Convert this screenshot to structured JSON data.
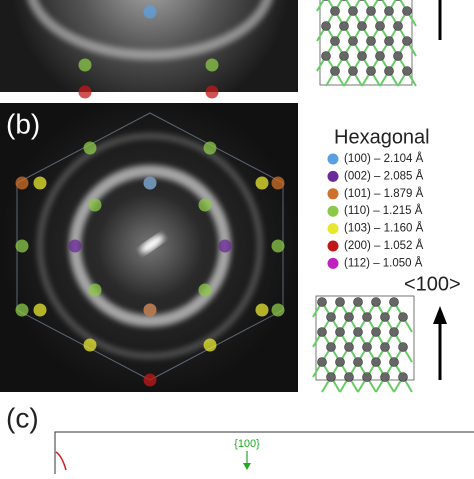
{
  "panels": {
    "b": {
      "label": "(b)",
      "legend_title": "Hexagonal",
      "legend": [
        {
          "text": "(100) – 2.104 Å",
          "color": "#5aa0e0"
        },
        {
          "text": "(002) – 2.085 Å",
          "color": "#6a2a9a"
        },
        {
          "text": "(101) – 1.879 Å",
          "color": "#d0702a"
        },
        {
          "text": "(110) – 1.215 Å",
          "color": "#8cc84a"
        },
        {
          "text": "(103) – 1.160 Å",
          "color": "#e8e830"
        },
        {
          "text": "(200) – 1.052 Å",
          "color": "#c01818"
        },
        {
          "text": "(112) – 1.050 Å",
          "color": "#c020c0"
        }
      ],
      "direction": "<100>"
    },
    "c": {
      "label": "(c)",
      "peak_label": "{100}"
    }
  }
}
